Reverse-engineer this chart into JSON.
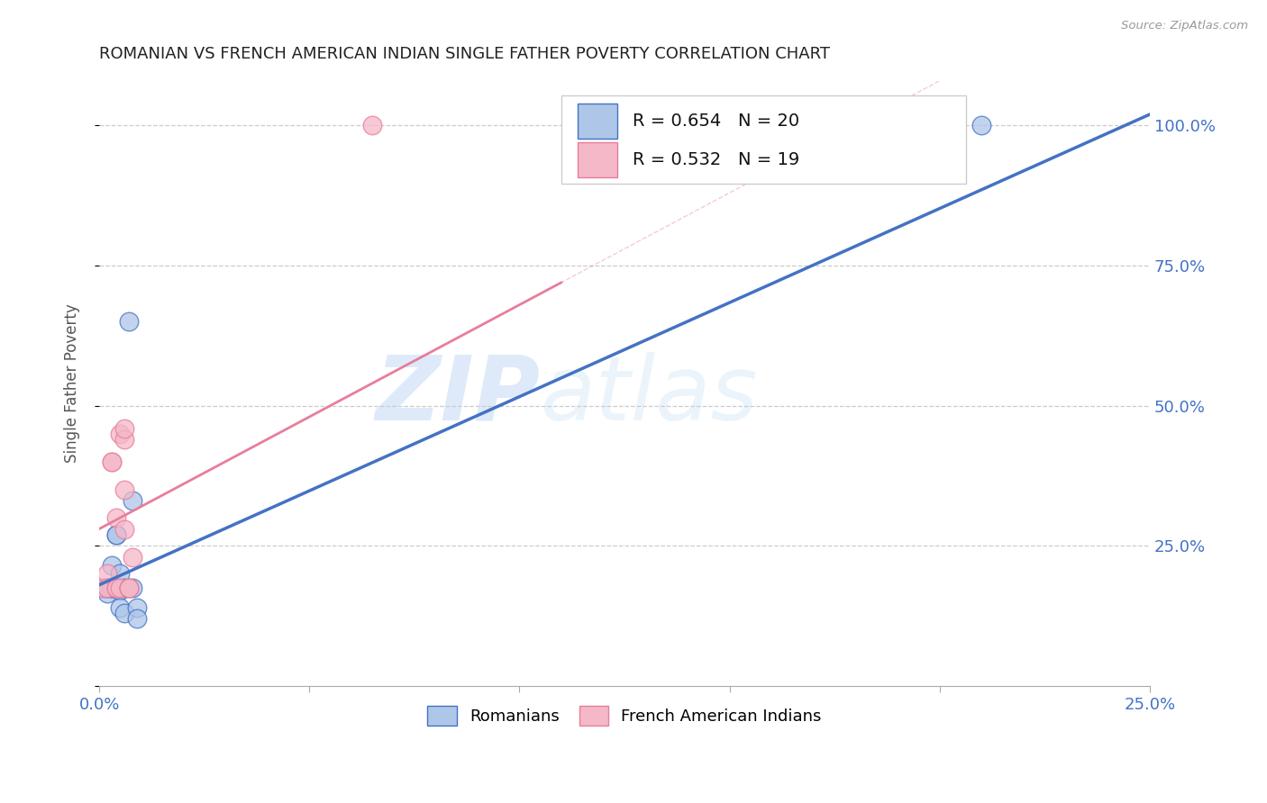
{
  "title": "ROMANIAN VS FRENCH AMERICAN INDIAN SINGLE FATHER POVERTY CORRELATION CHART",
  "source": "Source: ZipAtlas.com",
  "ylabel": "Single Father Poverty",
  "ytick_labels": [
    "25.0%",
    "50.0%",
    "75.0%",
    "100.0%"
  ],
  "ytick_values": [
    0.25,
    0.5,
    0.75,
    1.0
  ],
  "xlim": [
    0.0,
    0.25
  ],
  "ylim": [
    0.0,
    1.08
  ],
  "legend_r1": "R = 0.654",
  "legend_n1": "N = 20",
  "legend_r2": "R = 0.532",
  "legend_n2": "N = 19",
  "legend_label1": "Romanians",
  "legend_label2": "French American Indians",
  "color_blue": "#aec6e8",
  "color_pink": "#f4b8c8",
  "line_blue": "#4472c4",
  "line_pink": "#e87d9a",
  "title_color": "#222222",
  "axis_label_color": "#4472c4",
  "watermark_zip": "ZIP",
  "watermark_atlas": "atlas",
  "romanian_x": [
    0.001,
    0.002,
    0.002,
    0.003,
    0.003,
    0.003,
    0.004,
    0.004,
    0.004,
    0.005,
    0.005,
    0.005,
    0.006,
    0.006,
    0.007,
    0.008,
    0.008,
    0.009,
    0.009,
    0.21
  ],
  "romanian_y": [
    0.175,
    0.165,
    0.175,
    0.215,
    0.175,
    0.175,
    0.27,
    0.27,
    0.175,
    0.2,
    0.17,
    0.14,
    0.175,
    0.13,
    0.65,
    0.33,
    0.175,
    0.14,
    0.12,
    1.0
  ],
  "french_x": [
    0.001,
    0.002,
    0.002,
    0.003,
    0.003,
    0.004,
    0.004,
    0.004,
    0.005,
    0.005,
    0.006,
    0.006,
    0.006,
    0.006,
    0.007,
    0.007,
    0.007,
    0.008,
    0.065
  ],
  "french_y": [
    0.175,
    0.2,
    0.175,
    0.4,
    0.4,
    0.175,
    0.175,
    0.3,
    0.45,
    0.175,
    0.35,
    0.28,
    0.44,
    0.46,
    0.175,
    0.175,
    0.175,
    0.23,
    1.0
  ],
  "blue_line_x": [
    0.0,
    0.25
  ],
  "blue_line_y": [
    0.18,
    1.02
  ],
  "pink_line_x": [
    0.0,
    0.11
  ],
  "pink_line_y": [
    0.28,
    0.72
  ]
}
